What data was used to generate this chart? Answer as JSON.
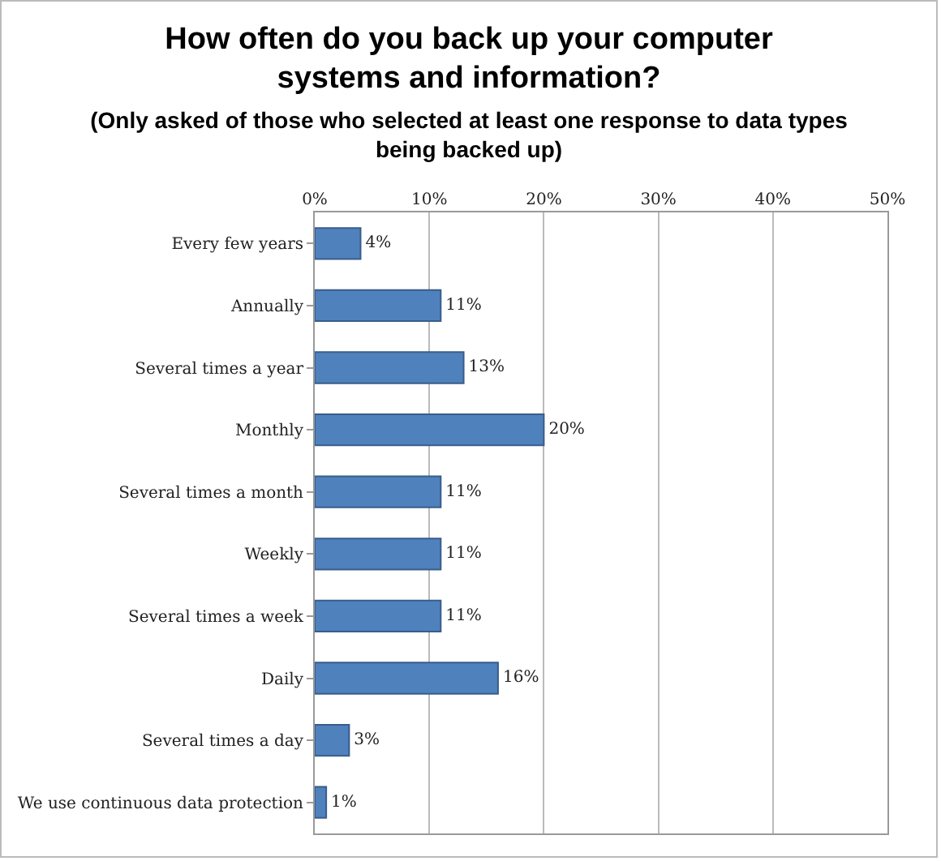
{
  "chart_data": {
    "type": "bar",
    "orientation": "horizontal",
    "title": "How often do you back up your computer systems and information?",
    "subtitle": "(Only asked of those who selected at least one response to data types being backed up)",
    "categories": [
      "Every few years",
      "Annually",
      "Several times a year",
      "Monthly",
      "Several times a month",
      "Weekly",
      "Several times a week",
      "Daily",
      "Several times a day",
      "We use continuous data protection"
    ],
    "values": [
      4,
      11,
      13,
      20,
      11,
      11,
      11,
      16,
      3,
      1
    ],
    "value_labels": [
      "4%",
      "11%",
      "13%",
      "20%",
      "11%",
      "11%",
      "11%",
      "16%",
      "3%",
      "1%"
    ],
    "color": "#4f81bd",
    "xlim": [
      0,
      50
    ],
    "xticks": [
      {
        "value": 0,
        "label": "0%"
      },
      {
        "value": 10,
        "label": "10%"
      },
      {
        "value": 20,
        "label": "20%"
      },
      {
        "value": 30,
        "label": "30%"
      },
      {
        "value": 40,
        "label": "40%"
      },
      {
        "value": 50,
        "label": "50%"
      }
    ],
    "grid": "x"
  }
}
